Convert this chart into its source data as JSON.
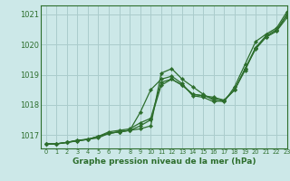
{
  "xlabel": "Graphe pression niveau de la mer (hPa)",
  "ylim": [
    1016.55,
    1021.3
  ],
  "xlim": [
    -0.5,
    23
  ],
  "yticks": [
    1017,
    1018,
    1019,
    1020,
    1021
  ],
  "xticks": [
    0,
    1,
    2,
    3,
    4,
    5,
    6,
    7,
    8,
    9,
    10,
    11,
    12,
    13,
    14,
    15,
    16,
    17,
    18,
    19,
    20,
    21,
    22,
    23
  ],
  "bg_color": "#cce8e8",
  "grid_color": "#aacccc",
  "line_color": "#2d6e2d",
  "marker_color": "#2d6e2d",
  "series": [
    [
      1016.7,
      1016.7,
      1016.75,
      1016.8,
      1016.85,
      1016.9,
      1017.05,
      1017.1,
      1017.15,
      1017.2,
      1017.3,
      1019.05,
      1019.2,
      1018.85,
      1018.6,
      1018.35,
      1018.15,
      1018.1,
      1018.6,
      1019.35,
      1020.1,
      1020.35,
      1020.55,
      1021.1
    ],
    [
      1016.7,
      1016.7,
      1016.75,
      1016.8,
      1016.85,
      1016.95,
      1017.1,
      1017.15,
      1017.2,
      1017.4,
      1017.55,
      1018.75,
      1018.85,
      1018.65,
      1018.35,
      1018.3,
      1018.2,
      1018.15,
      1018.5,
      1019.2,
      1019.85,
      1020.25,
      1020.45,
      1020.9
    ],
    [
      1016.7,
      1016.7,
      1016.75,
      1016.82,
      1016.85,
      1016.95,
      1017.05,
      1017.1,
      1017.15,
      1017.75,
      1018.5,
      1018.85,
      1018.95,
      1018.7,
      1018.3,
      1018.25,
      1018.1,
      1018.15,
      1018.5,
      1019.15,
      1019.9,
      1020.25,
      1020.45,
      1021.0
    ],
    [
      1016.7,
      1016.7,
      1016.75,
      1016.82,
      1016.85,
      1016.95,
      1017.05,
      1017.1,
      1017.15,
      1017.3,
      1017.5,
      1018.65,
      1018.85,
      1018.65,
      1018.35,
      1018.3,
      1018.25,
      1018.15,
      1018.5,
      1019.2,
      1019.9,
      1020.3,
      1020.5,
      1021.0
    ]
  ]
}
